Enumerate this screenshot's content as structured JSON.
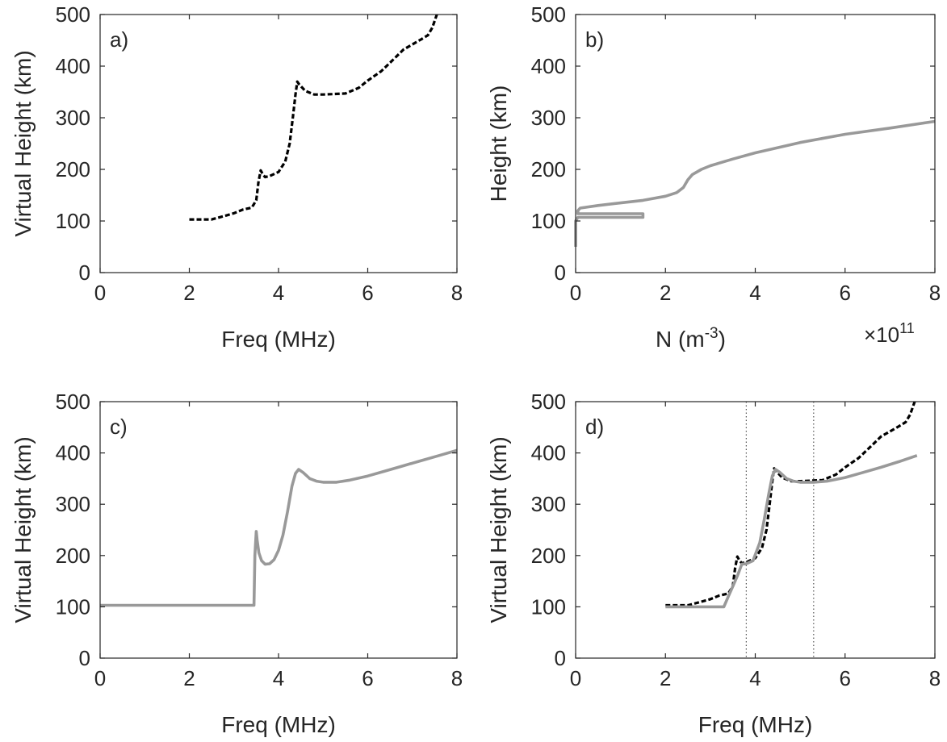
{
  "chart_data": [
    {
      "id": "a",
      "type": "line",
      "panel_label": "a)",
      "xlabel": "Freq (MHz)",
      "ylabel": "Virtual Height (km)",
      "xlim": [
        0,
        8
      ],
      "ylim": [
        0,
        500
      ],
      "xticks": [
        "0",
        "2",
        "4",
        "6",
        "8"
      ],
      "yticks": [
        "0",
        "100",
        "200",
        "300",
        "400",
        "500"
      ],
      "grid": false,
      "series": [
        {
          "color": "#000000",
          "dash": "dashed",
          "x": [
            2.0,
            2.5,
            2.8,
            3.0,
            3.2,
            3.4,
            3.5,
            3.55,
            3.6,
            3.65,
            3.7,
            3.8,
            4.0,
            4.15,
            4.25,
            4.32,
            4.38,
            4.42,
            4.46,
            4.6,
            4.8,
            5.0,
            5.5,
            5.8,
            6.0,
            6.3,
            6.6,
            6.8,
            7.0,
            7.2,
            7.35,
            7.45,
            7.55
          ],
          "y": [
            103,
            103,
            110,
            115,
            122,
            126,
            140,
            175,
            198,
            190,
            185,
            187,
            195,
            215,
            250,
            300,
            345,
            370,
            365,
            352,
            345,
            345,
            347,
            358,
            372,
            390,
            415,
            432,
            442,
            452,
            460,
            475,
            500
          ]
        }
      ]
    },
    {
      "id": "b",
      "type": "line",
      "panel_label": "b)",
      "xlabel": "N (m",
      "xlabel_sup": "-3",
      "xlabel_end": ")",
      "x_multiplier": "×10",
      "x_multiplier_exp": "11",
      "ylabel": "Height (km)",
      "xlim": [
        0,
        8
      ],
      "ylim": [
        0,
        500
      ],
      "xticks": [
        "0",
        "2",
        "4",
        "6",
        "8"
      ],
      "yticks": [
        "0",
        "100",
        "200",
        "300",
        "400",
        "500"
      ],
      "grid": false,
      "series": [
        {
          "color": "#999999",
          "dash": "solid",
          "x": [
            0.0,
            0.0,
            0.05,
            1.5,
            1.5,
            0.05,
            0.05,
            0.1,
            0.5,
            1.0,
            1.5,
            2.0,
            2.25,
            2.4,
            2.5,
            2.6,
            2.8,
            3.0,
            3.5,
            4.0,
            5.0,
            6.0,
            7.0,
            8.0
          ],
          "y": [
            50,
            100,
            107,
            107,
            114,
            114,
            120,
            125,
            130,
            135,
            140,
            148,
            155,
            165,
            180,
            190,
            200,
            207,
            220,
            232,
            252,
            268,
            280,
            293
          ]
        }
      ]
    },
    {
      "id": "c",
      "type": "line",
      "panel_label": "c)",
      "xlabel": "Freq (MHz)",
      "ylabel": "Virtual Height (km)",
      "xlim": [
        0,
        8
      ],
      "ylim": [
        0,
        500
      ],
      "xticks": [
        "0",
        "2",
        "4",
        "6",
        "8"
      ],
      "yticks": [
        "0",
        "100",
        "200",
        "300",
        "400",
        "500"
      ],
      "grid": false,
      "series": [
        {
          "color": "#999999",
          "dash": "solid",
          "x": [
            0.0,
            3.0,
            3.45,
            3.47,
            3.5,
            3.52,
            3.56,
            3.62,
            3.7,
            3.8,
            3.9,
            4.0,
            4.1,
            4.2,
            4.3,
            4.38,
            4.45,
            4.55,
            4.7,
            4.85,
            5.0,
            5.3,
            5.6,
            6.0,
            6.4,
            6.8,
            7.2,
            7.6,
            8.0
          ],
          "y": [
            103,
            103,
            103,
            200,
            247,
            230,
            205,
            190,
            183,
            184,
            192,
            210,
            240,
            285,
            335,
            360,
            368,
            362,
            350,
            345,
            343,
            343,
            347,
            355,
            365,
            375,
            385,
            395,
            405
          ]
        }
      ]
    },
    {
      "id": "d",
      "type": "line",
      "panel_label": "d)",
      "xlabel": "Freq (MHz)",
      "ylabel": "Virtual Height (km)",
      "xlim": [
        0,
        8
      ],
      "ylim": [
        0,
        500
      ],
      "xticks": [
        "0",
        "2",
        "4",
        "6",
        "8"
      ],
      "yticks": [
        "0",
        "100",
        "200",
        "300",
        "400",
        "500"
      ],
      "grid": false,
      "vlines": [
        3.8,
        5.3
      ],
      "series": [
        {
          "color": "#000000",
          "dash": "dashed",
          "x": [
            2.0,
            2.5,
            2.8,
            3.0,
            3.2,
            3.4,
            3.5,
            3.55,
            3.6,
            3.65,
            3.7,
            3.8,
            4.0,
            4.15,
            4.25,
            4.32,
            4.38,
            4.42,
            4.46,
            4.6,
            4.8,
            5.0,
            5.5,
            5.8,
            6.0,
            6.3,
            6.6,
            6.8,
            7.0,
            7.2,
            7.35,
            7.45,
            7.55
          ],
          "y": [
            103,
            103,
            110,
            115,
            122,
            126,
            140,
            175,
            198,
            190,
            185,
            187,
            195,
            215,
            250,
            300,
            345,
            370,
            365,
            352,
            345,
            345,
            347,
            358,
            372,
            390,
            415,
            432,
            442,
            452,
            460,
            475,
            500
          ]
        },
        {
          "color": "#999999",
          "dash": "solid",
          "x": [
            2.0,
            2.5,
            3.0,
            3.3,
            3.4,
            3.5,
            3.6,
            3.7,
            3.8,
            3.95,
            4.1,
            4.2,
            4.3,
            4.38,
            4.45,
            4.55,
            4.7,
            4.85,
            5.0,
            5.3,
            5.6,
            6.0,
            6.4,
            6.8,
            7.2,
            7.6
          ],
          "y": [
            100,
            100,
            100,
            100,
            120,
            140,
            160,
            183,
            184,
            190,
            225,
            270,
            320,
            355,
            368,
            362,
            350,
            345,
            343,
            343,
            345,
            352,
            362,
            372,
            383,
            395
          ]
        }
      ]
    }
  ]
}
